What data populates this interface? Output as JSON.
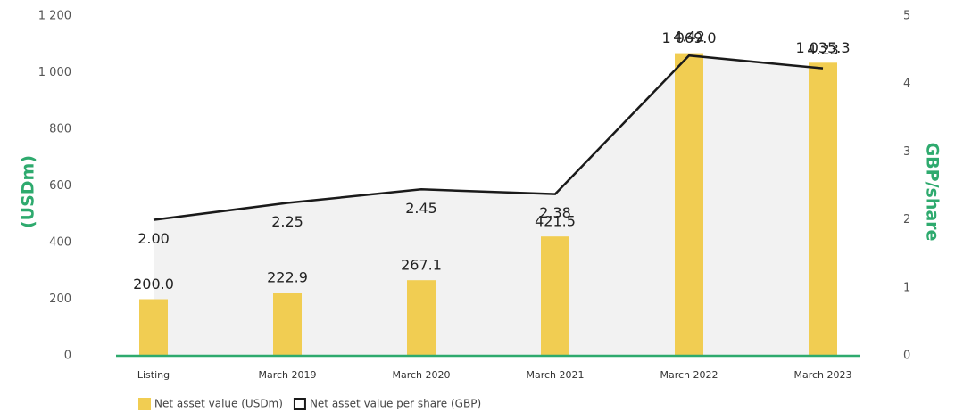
{
  "chart_data": {
    "type": "bar",
    "y_label": "(USDm)",
    "y2_label": "GBP/share",
    "categories": [
      "Listing",
      "March 2019",
      "March 2020",
      "March 2021",
      "March 2022",
      "March 2023"
    ],
    "series": [
      {
        "name": "Net asset value (USDm)",
        "type": "bar",
        "color": "#f1cd52",
        "values": [
          200.0,
          222.9,
          267.1,
          421.5,
          1069.0,
          1035.3
        ],
        "value_labels": [
          "200.0",
          "222.9",
          "267.1",
          "421.5",
          "1 069.0",
          "1 035.3"
        ]
      },
      {
        "name": "Net asset value per share (GBP)",
        "type": "line",
        "axis": "y2",
        "color": "#1a1a1a",
        "area_color": "#f2f2f2",
        "values": [
          2.0,
          2.25,
          2.45,
          2.38,
          4.42,
          4.23
        ],
        "value_labels": [
          "2.00",
          "2.25",
          "2.45",
          "2.38",
          "4.42",
          "4.23"
        ]
      }
    ],
    "ylim": [
      0,
      1200
    ],
    "yticks": [
      0,
      200,
      400,
      600,
      800,
      {
        "value": 1000,
        "label": "1 000"
      },
      {
        "value": 1200,
        "label": "1 200"
      }
    ],
    "y2lim": [
      0,
      5
    ],
    "y2ticks": [
      0,
      1,
      2,
      3,
      4,
      5
    ],
    "axis_color": "#2eaa6e",
    "legend": "bottom-left"
  }
}
